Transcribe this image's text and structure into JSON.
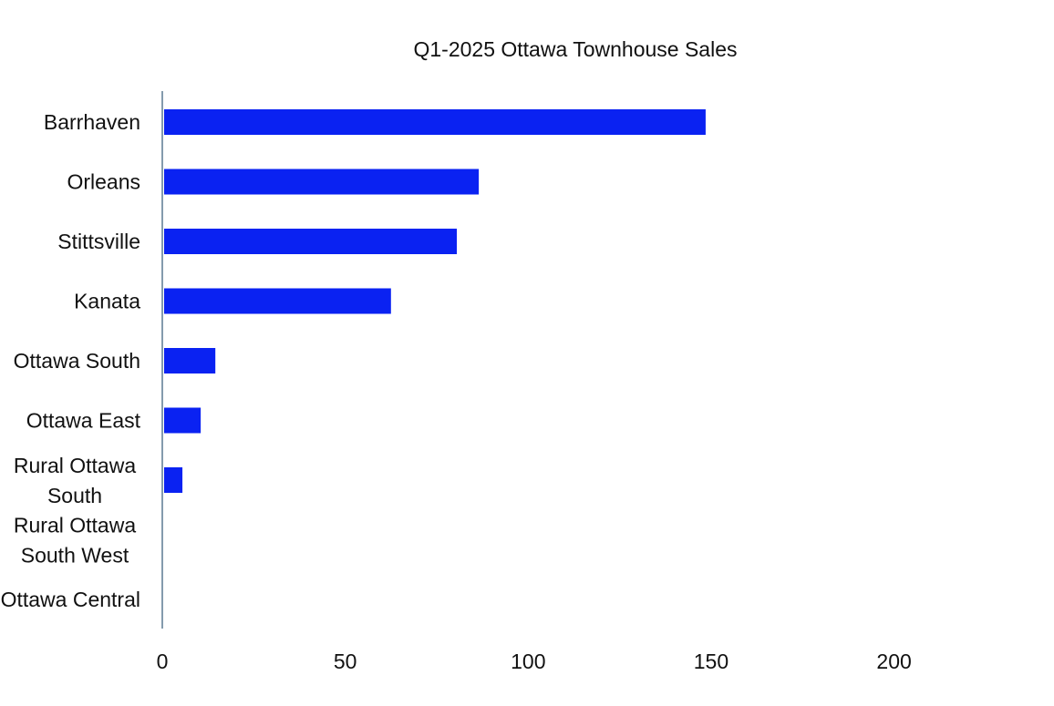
{
  "chart_data": {
    "type": "bar",
    "orientation": "horizontal",
    "title": "Q1-2025 Ottawa Townhouse Sales",
    "xlabel": "",
    "ylabel": "",
    "categories": [
      "Barrhaven",
      "Orleans",
      "Stittsville",
      "Kanata",
      "Ottawa South",
      "Ottawa East",
      "Rural Ottawa South",
      "Rural Ottawa South West",
      "Ottawa Central"
    ],
    "category_label_lines": [
      [
        "Barrhaven"
      ],
      [
        "Orleans"
      ],
      [
        "Stittsville"
      ],
      [
        "Kanata"
      ],
      [
        "Ottawa South"
      ],
      [
        "Ottawa East"
      ],
      [
        "Rural Ottawa",
        "South"
      ],
      [
        "Rural Ottawa",
        "South West"
      ],
      [
        "Ottawa Central"
      ]
    ],
    "values": [
      148,
      86,
      80,
      62,
      14,
      10,
      5,
      0,
      0
    ],
    "xlim": [
      0,
      200
    ],
    "xticks": [
      0,
      50,
      100,
      150,
      200
    ],
    "grid": false,
    "legend": "none",
    "bar_color": "#0a22f2",
    "axis_color": "#5b7a92"
  }
}
